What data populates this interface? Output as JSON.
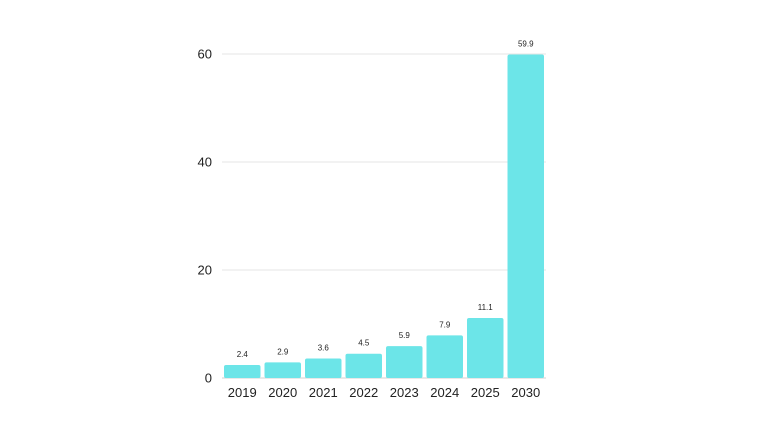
{
  "chart_data": {
    "type": "bar",
    "categories": [
      "2019",
      "2020",
      "2021",
      "2022",
      "2023",
      "2024",
      "2025",
      "2030"
    ],
    "values": [
      2.4,
      2.9,
      3.6,
      4.5,
      5.9,
      7.9,
      11.1,
      59.9
    ],
    "data_labels": [
      "2.4",
      "2.9",
      "3.6",
      "4.5",
      "5.9",
      "7.9",
      "11.1",
      "59.9"
    ],
    "y_ticks": [
      0,
      20,
      40,
      60
    ],
    "ylim": [
      0,
      60
    ],
    "grid": true,
    "legend": "none",
    "bar_color": "#6ce5e8"
  }
}
